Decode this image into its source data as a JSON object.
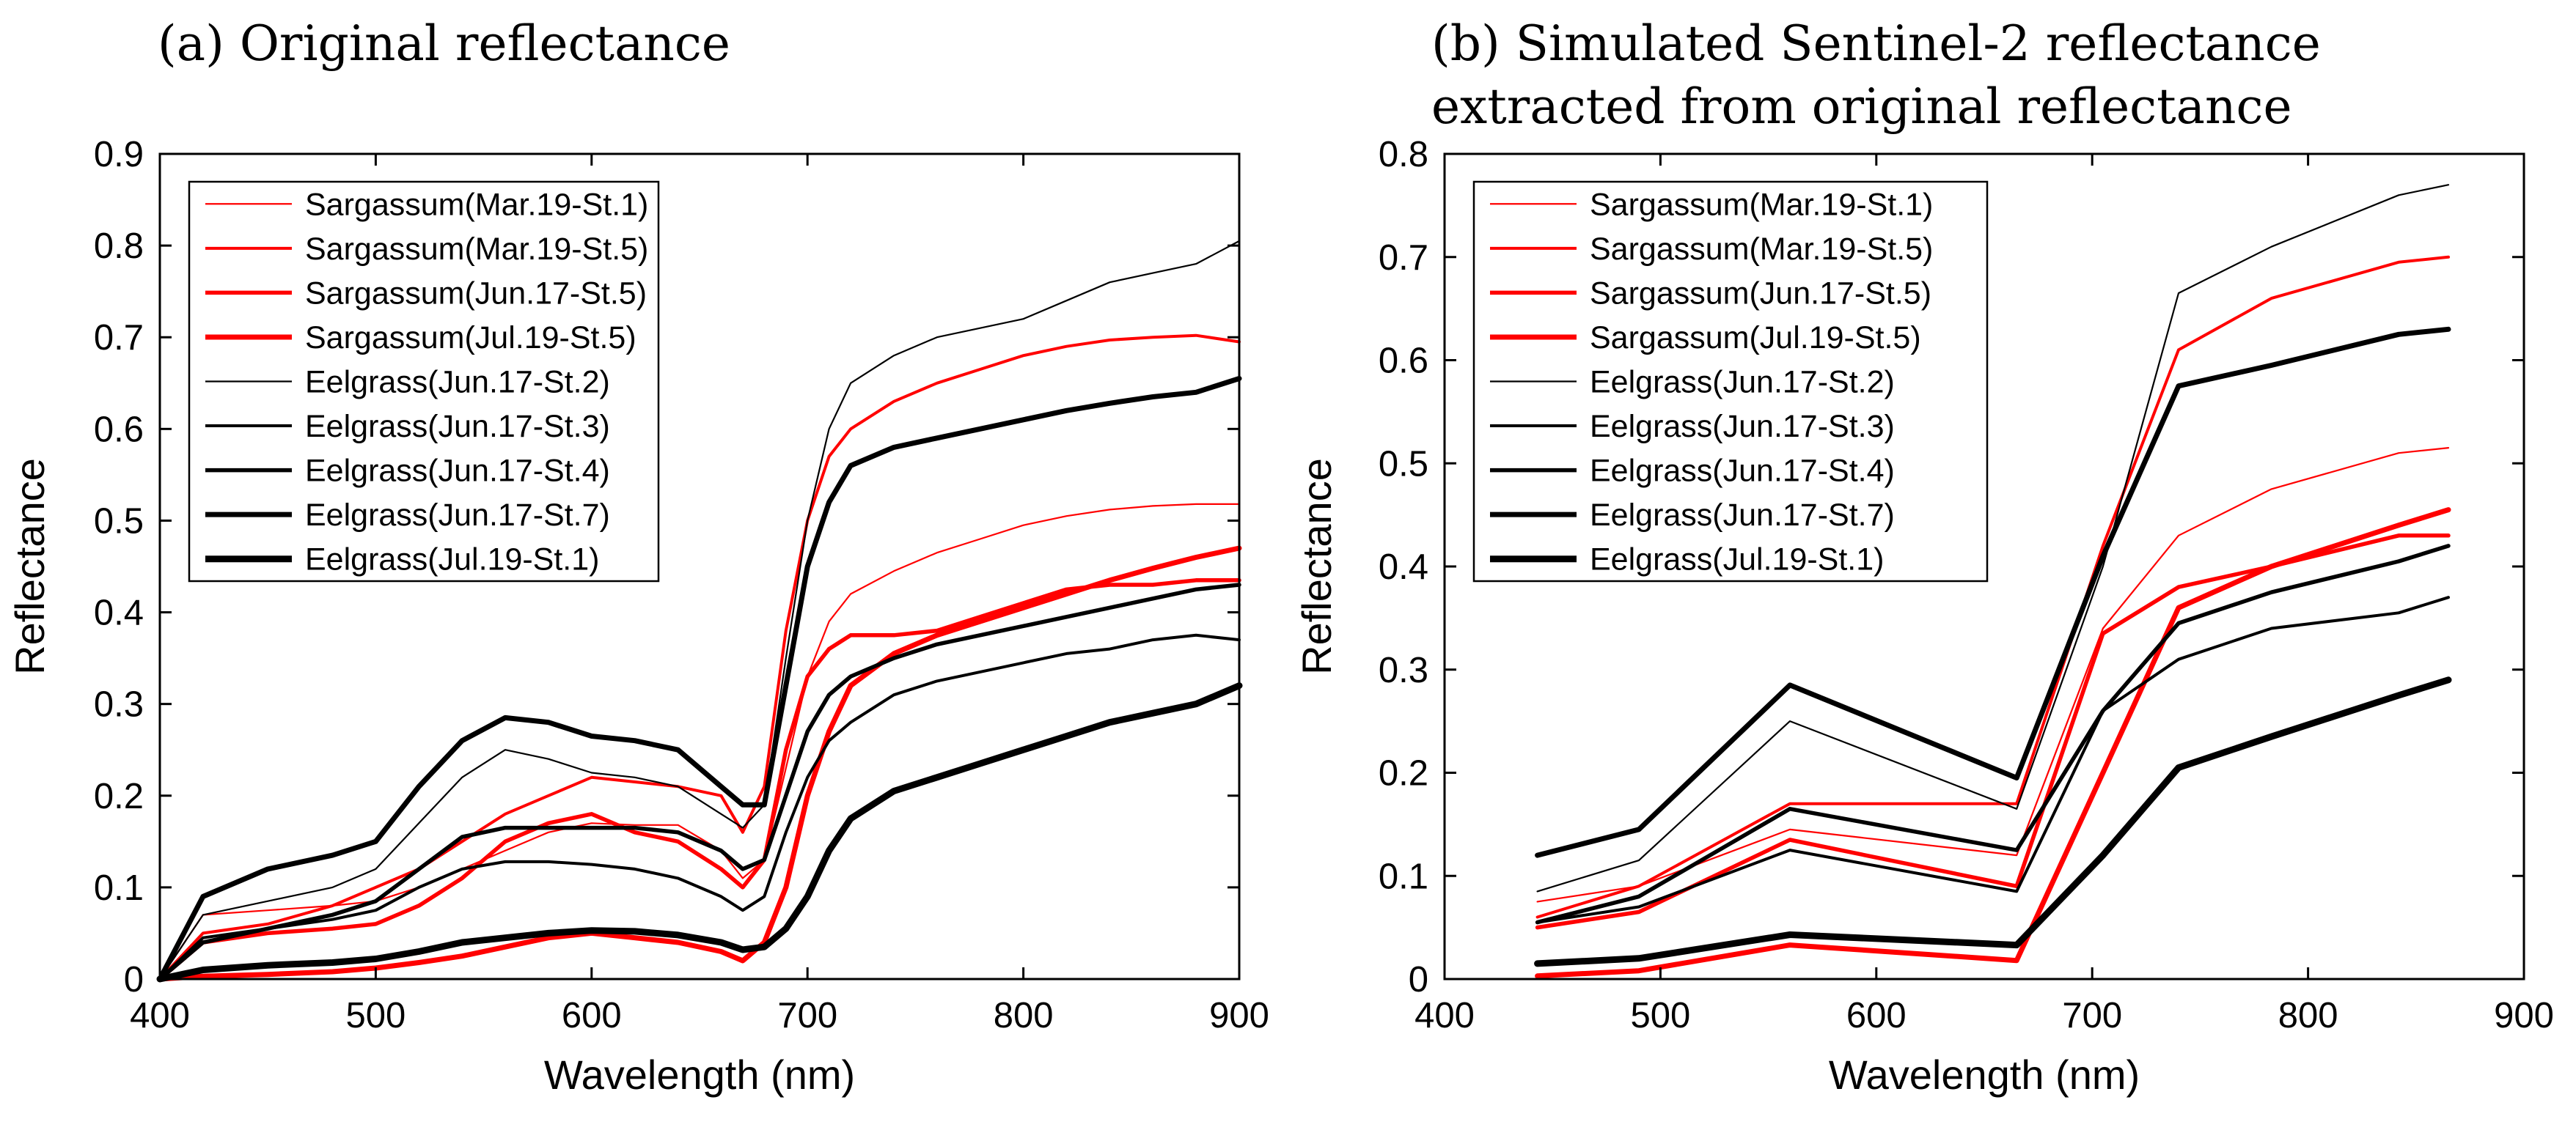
{
  "chart_data": [
    {
      "id": "a",
      "type": "line",
      "title": "(a) Original reflectance",
      "xlabel": "Wavelength (nm)",
      "ylabel": "Reflectance",
      "xlim": [
        400,
        900
      ],
      "ylim": [
        0,
        0.9
      ],
      "xticks": [
        400,
        500,
        600,
        700,
        800,
        900
      ],
      "xtick_labels": [
        "400",
        "500",
        "600",
        "700",
        "800",
        "900"
      ],
      "yticks": [
        0,
        0.1,
        0.2,
        0.3,
        0.4,
        0.5,
        0.6,
        0.7,
        0.8,
        0.9
      ],
      "ytick_labels": [
        "0",
        "0.1",
        "0.2",
        "0.3",
        "0.4",
        "0.5",
        "0.6",
        "0.7",
        "0.8",
        "0.9"
      ],
      "legend_position": "top-left",
      "series": [
        {
          "name": "Sargassum(Mar.19-St.1)",
          "color": "#ff0000",
          "weight": 1,
          "x": [
            400,
            420,
            450,
            480,
            500,
            520,
            540,
            560,
            580,
            600,
            620,
            640,
            660,
            670,
            680,
            690,
            700,
            710,
            720,
            740,
            760,
            780,
            800,
            820,
            840,
            860,
            880,
            900
          ],
          "y": [
            0,
            0.07,
            0.075,
            0.08,
            0.085,
            0.1,
            0.12,
            0.14,
            0.16,
            0.17,
            0.168,
            0.168,
            0.14,
            0.11,
            0.13,
            0.23,
            0.33,
            0.39,
            0.42,
            0.445,
            0.465,
            0.48,
            0.495,
            0.505,
            0.512,
            0.516,
            0.518,
            0.518
          ]
        },
        {
          "name": "Sargassum(Mar.19-St.5)",
          "color": "#ff0000",
          "weight": 2,
          "x": [
            400,
            420,
            450,
            480,
            500,
            520,
            540,
            560,
            580,
            600,
            620,
            640,
            660,
            670,
            680,
            690,
            700,
            710,
            720,
            740,
            760,
            780,
            800,
            820,
            840,
            860,
            880,
            900
          ],
          "y": [
            0,
            0.05,
            0.06,
            0.08,
            0.1,
            0.12,
            0.15,
            0.18,
            0.2,
            0.22,
            0.215,
            0.21,
            0.2,
            0.16,
            0.21,
            0.38,
            0.5,
            0.57,
            0.6,
            0.63,
            0.65,
            0.665,
            0.68,
            0.69,
            0.697,
            0.7,
            0.702,
            0.695
          ]
        },
        {
          "name": "Sargassum(Jun.17-St.5)",
          "color": "#ff0000",
          "weight": 3,
          "x": [
            400,
            420,
            450,
            480,
            500,
            520,
            540,
            560,
            580,
            600,
            620,
            640,
            660,
            670,
            680,
            690,
            700,
            710,
            720,
            740,
            760,
            780,
            800,
            820,
            840,
            860,
            880,
            900
          ],
          "y": [
            0,
            0.04,
            0.05,
            0.055,
            0.06,
            0.08,
            0.11,
            0.15,
            0.17,
            0.18,
            0.16,
            0.15,
            0.12,
            0.1,
            0.13,
            0.25,
            0.33,
            0.36,
            0.375,
            0.375,
            0.38,
            0.395,
            0.41,
            0.425,
            0.43,
            0.43,
            0.435,
            0.435
          ]
        },
        {
          "name": "Sargassum(Jul.19-St.5)",
          "color": "#ff0000",
          "weight": 4,
          "x": [
            400,
            420,
            450,
            480,
            500,
            520,
            540,
            560,
            580,
            600,
            620,
            640,
            660,
            670,
            680,
            690,
            700,
            710,
            720,
            740,
            760,
            780,
            800,
            820,
            840,
            860,
            880,
            900
          ],
          "y": [
            0,
            0.003,
            0.005,
            0.008,
            0.012,
            0.018,
            0.025,
            0.035,
            0.045,
            0.05,
            0.045,
            0.04,
            0.03,
            0.02,
            0.04,
            0.1,
            0.2,
            0.27,
            0.32,
            0.355,
            0.375,
            0.39,
            0.405,
            0.42,
            0.435,
            0.448,
            0.46,
            0.47
          ]
        },
        {
          "name": "Eelgrass(Jun.17-St.2)",
          "color": "#000000",
          "weight": 1,
          "x": [
            400,
            420,
            450,
            480,
            500,
            520,
            540,
            560,
            580,
            600,
            620,
            640,
            660,
            670,
            680,
            690,
            700,
            710,
            720,
            740,
            760,
            780,
            800,
            820,
            840,
            860,
            880,
            900
          ],
          "y": [
            0,
            0.07,
            0.085,
            0.1,
            0.12,
            0.17,
            0.22,
            0.25,
            0.24,
            0.225,
            0.22,
            0.21,
            0.18,
            0.165,
            0.19,
            0.35,
            0.5,
            0.6,
            0.65,
            0.68,
            0.7,
            0.71,
            0.72,
            0.74,
            0.76,
            0.77,
            0.78,
            0.805
          ]
        },
        {
          "name": "Eelgrass(Jun.17-St.3)",
          "color": "#000000",
          "weight": 2,
          "x": [
            400,
            420,
            450,
            480,
            500,
            520,
            540,
            560,
            580,
            600,
            620,
            640,
            660,
            670,
            680,
            690,
            700,
            710,
            720,
            740,
            760,
            780,
            800,
            820,
            840,
            860,
            880,
            900
          ],
          "y": [
            0,
            0.045,
            0.055,
            0.065,
            0.075,
            0.1,
            0.12,
            0.128,
            0.128,
            0.125,
            0.12,
            0.11,
            0.09,
            0.075,
            0.09,
            0.16,
            0.22,
            0.26,
            0.28,
            0.31,
            0.325,
            0.335,
            0.345,
            0.355,
            0.36,
            0.37,
            0.375,
            0.37
          ]
        },
        {
          "name": "Eelgrass(Jun.17-St.4)",
          "color": "#000000",
          "weight": 3,
          "x": [
            400,
            420,
            450,
            480,
            500,
            520,
            540,
            560,
            580,
            600,
            620,
            640,
            660,
            670,
            680,
            690,
            700,
            710,
            720,
            740,
            760,
            780,
            800,
            820,
            840,
            860,
            880,
            900
          ],
          "y": [
            0,
            0.04,
            0.055,
            0.07,
            0.085,
            0.12,
            0.155,
            0.165,
            0.165,
            0.165,
            0.165,
            0.16,
            0.14,
            0.12,
            0.13,
            0.2,
            0.27,
            0.31,
            0.33,
            0.35,
            0.365,
            0.375,
            0.385,
            0.395,
            0.405,
            0.415,
            0.425,
            0.43
          ]
        },
        {
          "name": "Eelgrass(Jun.17-St.7)",
          "color": "#000000",
          "weight": 4,
          "x": [
            400,
            420,
            450,
            480,
            500,
            520,
            540,
            560,
            580,
            600,
            620,
            640,
            660,
            670,
            680,
            690,
            700,
            710,
            720,
            740,
            760,
            780,
            800,
            820,
            840,
            860,
            880,
            900
          ],
          "y": [
            0,
            0.09,
            0.12,
            0.135,
            0.15,
            0.21,
            0.26,
            0.285,
            0.28,
            0.265,
            0.26,
            0.25,
            0.21,
            0.19,
            0.19,
            0.32,
            0.45,
            0.52,
            0.56,
            0.58,
            0.59,
            0.6,
            0.61,
            0.62,
            0.628,
            0.635,
            0.64,
            0.655
          ]
        },
        {
          "name": "Eelgrass(Jul.19-St.1)",
          "color": "#000000",
          "weight": 5,
          "x": [
            400,
            420,
            450,
            480,
            500,
            520,
            540,
            560,
            580,
            600,
            620,
            640,
            660,
            670,
            680,
            690,
            700,
            710,
            720,
            740,
            760,
            780,
            800,
            820,
            840,
            860,
            880,
            900
          ],
          "y": [
            0,
            0.01,
            0.015,
            0.018,
            0.022,
            0.03,
            0.04,
            0.045,
            0.05,
            0.053,
            0.052,
            0.048,
            0.04,
            0.032,
            0.035,
            0.055,
            0.09,
            0.14,
            0.175,
            0.205,
            0.22,
            0.235,
            0.25,
            0.265,
            0.28,
            0.29,
            0.3,
            0.32
          ]
        }
      ]
    },
    {
      "id": "b",
      "type": "line",
      "title": "(b) Simulated Sentinel-2 reflectance",
      "title_line2": "extracted from original reflectance",
      "xlabel": "Wavelength (nm)",
      "ylabel": "Reflectance",
      "xlim": [
        400,
        900
      ],
      "ylim": [
        0,
        0.8
      ],
      "xticks": [
        400,
        500,
        600,
        700,
        800,
        900
      ],
      "xtick_labels": [
        "400",
        "500",
        "600",
        "700",
        "800",
        "900"
      ],
      "yticks": [
        0,
        0.1,
        0.2,
        0.3,
        0.4,
        0.5,
        0.6,
        0.7,
        0.8
      ],
      "ytick_labels": [
        "0",
        "0.1",
        "0.2",
        "0.3",
        "0.4",
        "0.5",
        "0.6",
        "0.7",
        "0.8"
      ],
      "legend_position": "top-left",
      "series": [
        {
          "name": "Sargassum(Mar.19-St.1)",
          "color": "#ff0000",
          "weight": 1,
          "x": [
            443,
            490,
            560,
            665,
            705,
            740,
            783,
            842,
            865
          ],
          "y": [
            0.075,
            0.09,
            0.145,
            0.12,
            0.34,
            0.43,
            0.475,
            0.51,
            0.515
          ]
        },
        {
          "name": "Sargassum(Mar.19-St.5)",
          "color": "#ff0000",
          "weight": 2,
          "x": [
            443,
            490,
            560,
            665,
            705,
            740,
            783,
            842,
            865
          ],
          "y": [
            0.06,
            0.09,
            0.17,
            0.17,
            0.42,
            0.61,
            0.66,
            0.695,
            0.7
          ]
        },
        {
          "name": "Sargassum(Jun.17-St.5)",
          "color": "#ff0000",
          "weight": 3,
          "x": [
            443,
            490,
            560,
            665,
            705,
            740,
            783,
            842,
            865
          ],
          "y": [
            0.05,
            0.065,
            0.135,
            0.09,
            0.335,
            0.38,
            0.4,
            0.43,
            0.43
          ]
        },
        {
          "name": "Sargassum(Jul.19-St.5)",
          "color": "#ff0000",
          "weight": 4,
          "x": [
            443,
            490,
            560,
            665,
            705,
            740,
            783,
            842,
            865
          ],
          "y": [
            0.003,
            0.008,
            0.033,
            0.018,
            0.2,
            0.36,
            0.4,
            0.44,
            0.455
          ]
        },
        {
          "name": "Eelgrass(Jun.17-St.2)",
          "color": "#000000",
          "weight": 1,
          "x": [
            443,
            490,
            560,
            665,
            705,
            740,
            783,
            842,
            865
          ],
          "y": [
            0.085,
            0.115,
            0.25,
            0.165,
            0.4,
            0.665,
            0.71,
            0.76,
            0.77
          ]
        },
        {
          "name": "Eelgrass(Jun.17-St.3)",
          "color": "#000000",
          "weight": 2,
          "x": [
            443,
            490,
            560,
            665,
            705,
            740,
            783,
            842,
            865
          ],
          "y": [
            0.055,
            0.07,
            0.125,
            0.085,
            0.26,
            0.31,
            0.34,
            0.355,
            0.37
          ]
        },
        {
          "name": "Eelgrass(Jun.17-St.4)",
          "color": "#000000",
          "weight": 3,
          "x": [
            443,
            490,
            560,
            665,
            705,
            740,
            783,
            842,
            865
          ],
          "y": [
            0.055,
            0.08,
            0.165,
            0.125,
            0.26,
            0.345,
            0.375,
            0.405,
            0.42
          ]
        },
        {
          "name": "Eelgrass(Jun.17-St.7)",
          "color": "#000000",
          "weight": 4,
          "x": [
            443,
            490,
            560,
            665,
            705,
            740,
            783,
            842,
            865
          ],
          "y": [
            0.12,
            0.145,
            0.285,
            0.195,
            0.41,
            0.575,
            0.595,
            0.625,
            0.63
          ]
        },
        {
          "name": "Eelgrass(Jul.19-St.1)",
          "color": "#000000",
          "weight": 5,
          "x": [
            443,
            490,
            560,
            665,
            705,
            740,
            783,
            842,
            865
          ],
          "y": [
            0.015,
            0.02,
            0.043,
            0.033,
            0.12,
            0.205,
            0.235,
            0.275,
            0.29
          ]
        }
      ]
    }
  ]
}
